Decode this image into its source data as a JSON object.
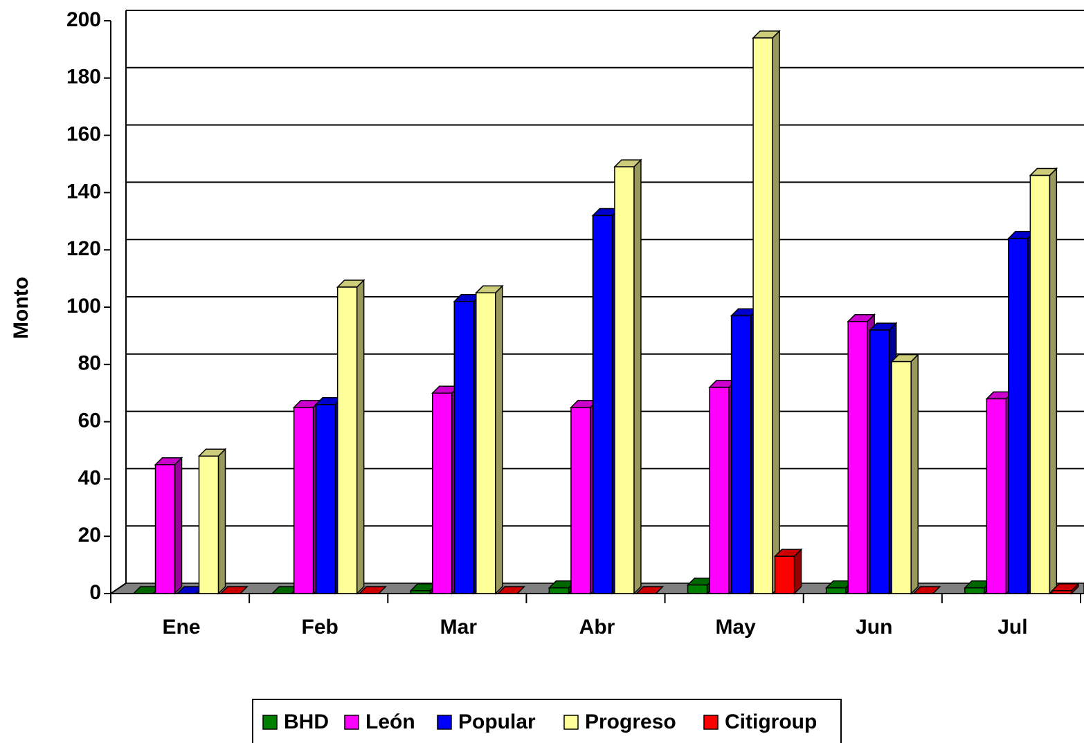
{
  "chart_data": {
    "type": "bar3d",
    "y_label": "Monto",
    "categories": [
      "Ene",
      "Feb",
      "Mar",
      "Abr",
      "May",
      "Jun",
      "Jul"
    ],
    "series": [
      {
        "name": "BHD",
        "color": "#008000",
        "values": [
          0,
          0,
          1,
          2,
          3,
          2,
          2
        ]
      },
      {
        "name": "León",
        "color": "#ff00ff",
        "values": [
          45,
          65,
          70,
          65,
          72,
          95,
          68
        ]
      },
      {
        "name": "Popular",
        "color": "#0000ff",
        "values": [
          0,
          66,
          102,
          132,
          97,
          92,
          124
        ]
      },
      {
        "name": "Progreso",
        "color": "#ffff99",
        "values": [
          48,
          107,
          105,
          149,
          194,
          81,
          146
        ]
      },
      {
        "name": "Citigroup",
        "color": "#ff0000",
        "values": [
          0,
          0,
          0,
          0,
          13,
          0,
          1
        ]
      }
    ],
    "ylim": [
      0,
      200
    ],
    "yticks": [
      0,
      20,
      40,
      60,
      80,
      100,
      120,
      140,
      160,
      180,
      200
    ],
    "grid": true,
    "legend": "bottom"
  }
}
